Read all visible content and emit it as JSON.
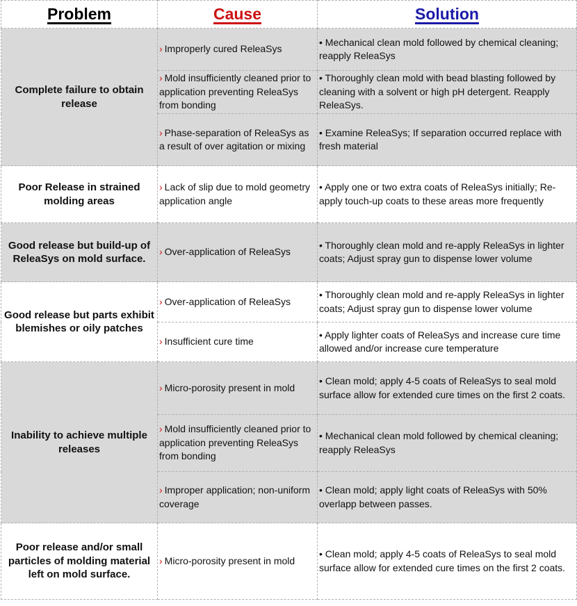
{
  "headers": {
    "problem": "Problem",
    "cause": "Cause",
    "solution": "Solution"
  },
  "colors": {
    "problem_header": "#000000",
    "cause_header": "#cc1111",
    "solution_header": "#1a1aa8",
    "shaded_row": "#d9d9d9",
    "chevron": "#cc1111"
  },
  "rows": [
    {
      "problem": "Complete failure to obtain release",
      "items": [
        {
          "cause": "Improperly cured ReleaSys",
          "solution": "• Mechanical clean mold followed by chemical cleaning; reapply ReleaSys"
        },
        {
          "cause": "Mold insufficiently cleaned prior to application preventing  ReleaSys from bonding",
          "solution": "• Thoroughly clean mold with bead blasting followed by cleaning with a solvent or high pH detergent.  Reapply ReleaSys."
        },
        {
          "cause": "Phase-separation of ReleaSys as a result of over agitation or mixing",
          "solution": "• Examine ReleaSys; If separation occurred replace with fresh material"
        }
      ]
    },
    {
      "problem": "Poor Release in strained molding areas",
      "items": [
        {
          "cause": "Lack of slip due to mold geometry application angle",
          "solution": "• Apply one or two extra coats of ReleaSys initially; Re-apply touch-up coats to these areas more frequently"
        }
      ]
    },
    {
      "problem": "Good release but build-up of ReleaSys on mold surface.",
      "items": [
        {
          "cause": "Over-application of ReleaSys",
          "solution": "• Thoroughly clean mold and re-apply ReleaSys in lighter coats; Adjust spray gun to dispense lower volume"
        }
      ]
    },
    {
      "problem": "Good release but parts exhibit blemishes or oily patches",
      "items": [
        {
          "cause": "Over-application of ReleaSys",
          "solution": "• Thoroughly clean mold and re-apply ReleaSys in lighter coats; Adjust  spray gun to dispense lower volume"
        },
        {
          "cause": "Insufficient cure time",
          "solution": "• Apply lighter coats of ReleaSys and increase cure time allowed and/or increase cure temperature"
        }
      ]
    },
    {
      "problem": "Inability to achieve multiple releases",
      "items": [
        {
          "cause": "Micro-porosity present in mold",
          "solution": "• Clean mold; apply 4-5 coats of ReleaSys to seal mold surface allow for  extended cure times on the first 2 coats."
        },
        {
          "cause": "Mold insufficiently cleaned prior to application preventing  ReleaSys from bonding",
          "solution": "• Mechanical clean mold followed by chemical cleaning; reapply ReleaSys"
        },
        {
          "cause": "Improper application; non-uniform coverage",
          "solution": "• Clean mold; apply light coats of ReleaSys with 50% overlapp between passes."
        }
      ]
    },
    {
      "problem": "Poor release and/or small particles of molding material left on mold surface.",
      "items": [
        {
          "cause": "Micro-porosity present in mold",
          "solution": "• Clean mold; apply 4-5 coats of ReleaSys to seal mold surface allow for  extended cure times on the first 2 coats."
        }
      ]
    }
  ]
}
